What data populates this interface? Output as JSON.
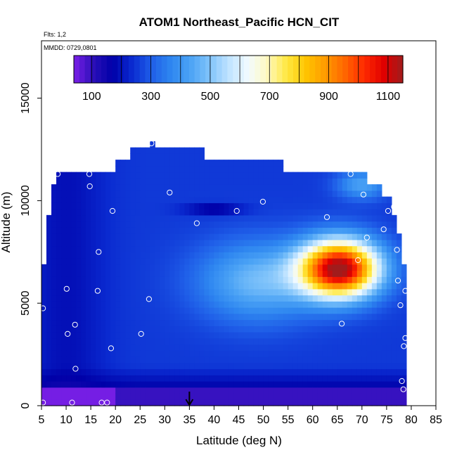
{
  "chart_data": {
    "type": "heatmap",
    "title": "ATOM1 Northeast_Pacific HCN_CIT",
    "flights_text": "Flts: 1,2",
    "dates_text": "MMDD: 0729,0801",
    "xlabel": "Latitude (deg N)",
    "ylabel": "Altitude (m)",
    "xlim": [
      5,
      85
    ],
    "ylim": [
      0,
      17800
    ],
    "x_ticks": [
      5,
      10,
      15,
      20,
      25,
      30,
      35,
      40,
      45,
      50,
      55,
      60,
      65,
      70,
      75,
      80,
      85
    ],
    "y_ticks": [
      0,
      5000,
      10000,
      15000
    ],
    "colorbar": {
      "min": 40,
      "max": 1150,
      "tick_values": [
        100,
        300,
        500,
        700,
        900,
        1100
      ],
      "colors": [
        "#7b1fe8",
        "#2a0fb8",
        "#0000a8",
        "#0a2ad0",
        "#1f5ee8",
        "#2e86f0",
        "#4aa2f5",
        "#7fc3fa",
        "#bfe3ff",
        "#f2fbff",
        "#fff8c0",
        "#ffe840",
        "#ffc400",
        "#ff9a00",
        "#ff6600",
        "#ff2a00",
        "#e00000",
        "#a01c1c"
      ]
    },
    "field_model": {
      "background_ppt": 255,
      "plume": {
        "center_lat": 65.5,
        "center_alt_m": 6700,
        "peak_ppt": 1150,
        "lat_width": 8,
        "alt_width_m": 1400
      },
      "plume_extension": {
        "center_lat": 49,
        "center_alt_m": 6100,
        "peak_ppt": 480,
        "lat_width": 12,
        "alt_width_m": 1900
      },
      "low_altitude_clean": {
        "below_alt_m": 2000,
        "min_ppt": 105
      },
      "surface_minimum": {
        "below_alt_m": 900,
        "value_ppt": 95,
        "south_of_lat": 20,
        "south_value_ppt": 45
      },
      "upper_north_enhancement": {
        "center_lat": 70,
        "center_alt_m": 10800,
        "peak_ppt": 430
      },
      "upper_low_streak": {
        "center_lat": 40,
        "center_alt_m": 9600,
        "value_ppt": 150
      }
    },
    "coverage": [
      {
        "alt_m": [
          0,
          5000
        ],
        "lat": [
          5,
          79
        ]
      },
      {
        "alt_m": [
          5000,
          6900
        ],
        "lat": [
          5.5,
          79
        ]
      },
      {
        "alt_m": [
          6900,
          8400
        ],
        "lat": [
          6.5,
          78
        ]
      },
      {
        "alt_m": [
          8400,
          9400
        ],
        "lat": [
          6.5,
          77
        ]
      },
      {
        "alt_m": [
          9400,
          10300
        ],
        "lat": [
          7.5,
          76
        ]
      },
      {
        "alt_m": [
          10300,
          10900
        ],
        "lat": [
          7.5,
          74
        ]
      },
      {
        "alt_m": [
          10900,
          11500
        ],
        "lat": [
          8,
          71
        ]
      },
      {
        "alt_m": [
          11500,
          12000
        ],
        "lat": [
          20.5,
          54
        ]
      },
      {
        "alt_m": [
          12000,
          12500
        ],
        "lat": [
          23,
          38
        ]
      },
      {
        "alt_m": [
          12500,
          12900
        ],
        "lat": [
          27,
          28
        ]
      }
    ],
    "sample_points": [
      {
        "lat": 5.3,
        "alt_m": 150
      },
      {
        "lat": 11.2,
        "alt_m": 150
      },
      {
        "lat": 17.2,
        "alt_m": 150
      },
      {
        "lat": 18.3,
        "alt_m": 150
      },
      {
        "lat": 5.3,
        "alt_m": 4750
      },
      {
        "lat": 10.1,
        "alt_m": 5700
      },
      {
        "lat": 11.8,
        "alt_m": 3950
      },
      {
        "lat": 10.3,
        "alt_m": 3500
      },
      {
        "lat": 11.9,
        "alt_m": 1800
      },
      {
        "lat": 16.4,
        "alt_m": 5600
      },
      {
        "lat": 19.1,
        "alt_m": 2800
      },
      {
        "lat": 25.2,
        "alt_m": 3500
      },
      {
        "lat": 26.8,
        "alt_m": 5200
      },
      {
        "lat": 16.6,
        "alt_m": 7500
      },
      {
        "lat": 8.3,
        "alt_m": 11300
      },
      {
        "lat": 14.7,
        "alt_m": 11300
      },
      {
        "lat": 14.8,
        "alt_m": 10700
      },
      {
        "lat": 19.4,
        "alt_m": 9500
      },
      {
        "lat": 27.3,
        "alt_m": 12800
      },
      {
        "lat": 31.0,
        "alt_m": 10400
      },
      {
        "lat": 36.5,
        "alt_m": 8900
      },
      {
        "lat": 44.6,
        "alt_m": 9500
      },
      {
        "lat": 49.9,
        "alt_m": 9950
      },
      {
        "lat": 62.9,
        "alt_m": 9200
      },
      {
        "lat": 67.7,
        "alt_m": 11300
      },
      {
        "lat": 70.3,
        "alt_m": 10300
      },
      {
        "lat": 75.3,
        "alt_m": 9500
      },
      {
        "lat": 76.5,
        "alt_m": 9700
      },
      {
        "lat": 74.4,
        "alt_m": 8600
      },
      {
        "lat": 71.0,
        "alt_m": 8200
      },
      {
        "lat": 69.2,
        "alt_m": 7100
      },
      {
        "lat": 77.1,
        "alt_m": 7600
      },
      {
        "lat": 77.3,
        "alt_m": 6100
      },
      {
        "lat": 78.8,
        "alt_m": 5600
      },
      {
        "lat": 77.8,
        "alt_m": 4900
      },
      {
        "lat": 65.9,
        "alt_m": 4000
      },
      {
        "lat": 78.8,
        "alt_m": 3300
      },
      {
        "lat": 78.5,
        "alt_m": 2900
      },
      {
        "lat": 78.1,
        "alt_m": 1200
      },
      {
        "lat": 78.4,
        "alt_m": 800
      }
    ],
    "marker": {
      "lat": 35,
      "label": ""
    }
  }
}
